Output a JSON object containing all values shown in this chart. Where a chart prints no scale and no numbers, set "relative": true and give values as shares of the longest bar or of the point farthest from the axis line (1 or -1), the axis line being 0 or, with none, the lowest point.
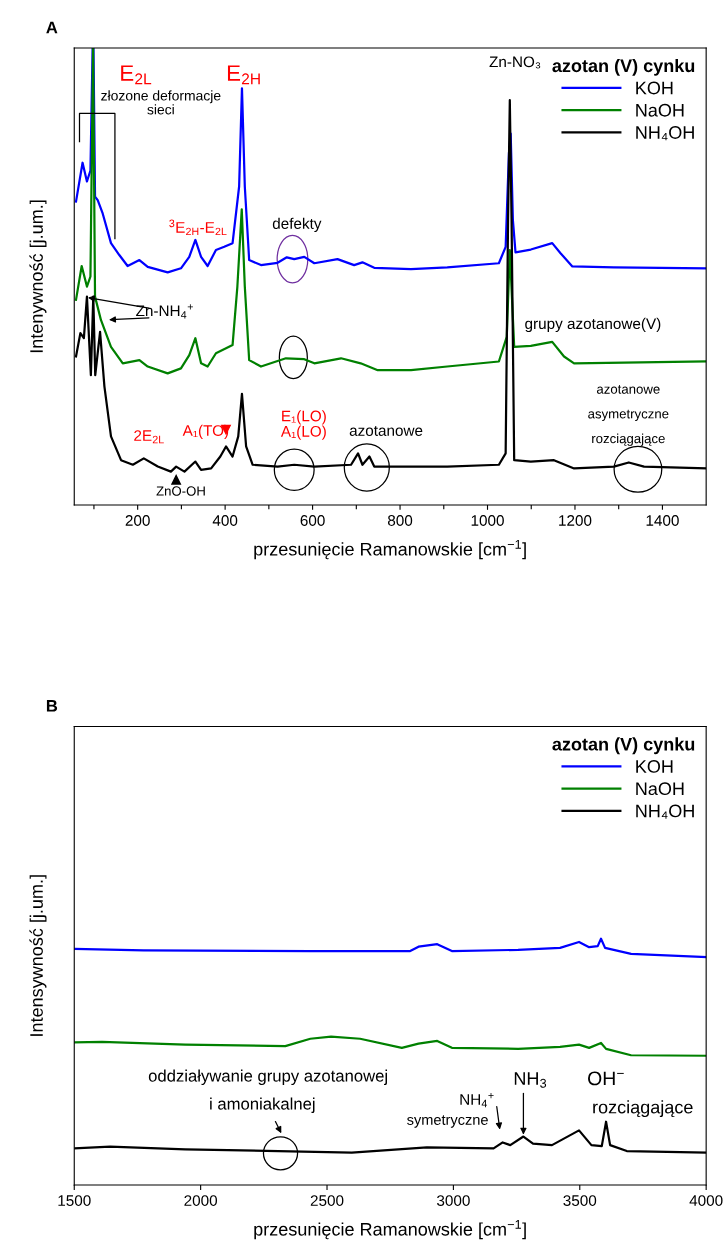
{
  "chart_data": [
    {
      "type": "line",
      "title": "A",
      "xlabel": "przesunięcie Ramanowskie [cm$^{−1}$]",
      "ylabel": "Intenywność [j.um.]",
      "relative": true,
      "legend": "top right",
      "legend_title": "azotan (V) cynku",
      "xlim": [
        55,
        1500
      ],
      "xticks": [
        {
          "value": 100,
          "label": null
        },
        200,
        {
          "value": 300,
          "label": null
        },
        400,
        {
          "value": 500,
          "label": null
        },
        600,
        {
          "value": 700,
          "label": null
        },
        800,
        {
          "value": 900,
          "label": null
        },
        1000,
        {
          "value": 1100,
          "label": null
        },
        1200,
        {
          "value": 1300,
          "label": null
        },
        1400
      ],
      "series": [
        {
          "name": "KOH",
          "color": "#0000ff",
          "x": [
            59,
            74,
            84,
            92,
            97,
            99,
            102.5,
            108.6,
            120,
            139,
            158,
            177,
            204,
            223,
            268.6,
            299,
            318,
            332,
            345,
            360,
            379,
            398,
            417,
            432,
            438.5,
            445,
            455,
            482,
            520,
            541,
            558,
            581,
            604,
            657,
            695,
            714,
            741,
            825,
            908,
            1026,
            1041.5,
            1049,
            1053,
            1058,
            1064,
            1099,
            1148,
            1167,
            1194,
            1289,
            1499
          ],
          "values": [
            0.664,
            0.749,
            0.708,
            0.732,
            1.0,
            1.0,
            0.675,
            0.667,
            0.638,
            0.573,
            0.547,
            0.523,
            0.536,
            0.521,
            0.509,
            0.518,
            0.543,
            0.58,
            0.543,
            0.523,
            0.558,
            0.565,
            0.573,
            0.697,
            0.912,
            0.697,
            0.536,
            0.525,
            0.53,
            0.542,
            0.538,
            0.543,
            0.529,
            0.538,
            0.525,
            0.531,
            0.519,
            0.516,
            0.52,
            0.529,
            0.565,
            0.77,
            0.813,
            0.624,
            0.553,
            0.559,
            0.573,
            0.551,
            0.522,
            0.52,
            0.518
          ]
        },
        {
          "name": "NaOH",
          "color": "#008000",
          "x": [
            59,
            72,
            84,
            92,
            98,
            102.5,
            116,
            139,
            166,
            204,
            223,
            268.6,
            299,
            318,
            332,
            345,
            360,
            379,
            417,
            428,
            438,
            445,
            455,
            482,
            539,
            581,
            604,
            665,
            710,
            749,
            825,
            908,
            1026,
            1044,
            1051,
            1061,
            1099,
            1148,
            1175,
            1198,
            1499
          ],
          "values": [
            0.449,
            0.523,
            0.478,
            0.5,
            1.0,
            0.456,
            0.405,
            0.346,
            0.31,
            0.317,
            0.303,
            0.288,
            0.299,
            0.328,
            0.365,
            0.31,
            0.303,
            0.332,
            0.35,
            0.478,
            0.647,
            0.478,
            0.317,
            0.303,
            0.321,
            0.319,
            0.31,
            0.321,
            0.31,
            0.295,
            0.295,
            0.303,
            0.314,
            0.368,
            0.558,
            0.346,
            0.348,
            0.357,
            0.325,
            0.31,
            0.314
          ]
        },
        {
          "name": "NH₄OH",
          "color": "#000000",
          "x": [
            59,
            69,
            77,
            84,
            93,
            98.5,
            103,
            114,
            124,
            139,
            162,
            189,
            214,
            246,
            276,
            288,
            307,
            332,
            345,
            368,
            389,
            402,
            417,
            430,
            438.5,
            448,
            463,
            520,
            558,
            604,
            688,
            704,
            714,
            730,
            741,
            825,
            908,
            1026,
            1041.5,
            1047,
            1051,
            1055,
            1061,
            1099,
            1152,
            1198,
            1289,
            1323,
            1358,
            1499
          ],
          "values": [
            0.325,
            0.376,
            0.365,
            0.456,
            0.284,
            0.456,
            0.284,
            0.379,
            0.259,
            0.15,
            0.098,
            0.088,
            0.102,
            0.084,
            0.073,
            0.084,
            0.073,
            0.095,
            0.077,
            0.08,
            0.106,
            0.128,
            0.106,
            0.15,
            0.243,
            0.128,
            0.088,
            0.084,
            0.088,
            0.084,
            0.088,
            0.113,
            0.088,
            0.106,
            0.084,
            0.084,
            0.084,
            0.088,
            0.113,
            0.624,
            0.886,
            0.624,
            0.098,
            0.095,
            0.098,
            0.08,
            0.084,
            0.093,
            0.084,
            0.08
          ]
        }
      ],
      "annotations": [
        "E$_{2L}$",
        "E$_{2H}$",
        "złozone deformacje\nsieci",
        "$^{3}$E$_{2H}$-E$_{2L}$",
        "defekty",
        "Zn-NH$_{4}$$^{+}$",
        "grupy azotanowe(V)",
        "azotanowe\nasymetryczne\nrozciągające",
        "Zn-NO₃",
        "2E$_{2L}$",
        "A₁(TO)",
        "E₁(LO)\nA₁(LO)",
        "azotanowe",
        "ZnO-OH"
      ]
    },
    {
      "type": "line",
      "title": "B",
      "xlabel": "przesunięcie Ramanowskie [cm$^{−1}$]",
      "ylabel": "Intensywność [j.um.]",
      "relative": true,
      "legend": "top right",
      "legend_title": "azotan (V) cynku",
      "xlim": [
        1500,
        4000
      ],
      "xticks": [
        1500,
        2000,
        2500,
        3000,
        3500,
        4000
      ],
      "series": [
        {
          "name": "KOH",
          "color": "#0000ff",
          "x": [
            1500,
            1774,
            2434,
            2829,
            2862,
            2936,
            2994,
            3256,
            3422,
            3497,
            3537,
            3571,
            3584,
            3600,
            3703,
            4000
          ],
          "values": [
            0.959,
            0.953,
            0.95,
            0.95,
            0.968,
            0.978,
            0.95,
            0.955,
            0.963,
            0.987,
            0.966,
            0.97,
            1.0,
            0.963,
            0.939,
            0.926
          ]
        },
        {
          "name": "NaOH",
          "color": "#008000",
          "x": [
            1500,
            1610,
            1939,
            2335,
            2434,
            2516,
            2631,
            2796,
            2862,
            2936,
            2994,
            3256,
            3422,
            3497,
            3537,
            3584,
            3604,
            3703,
            4000
          ],
          "values": [
            0.579,
            0.581,
            0.57,
            0.564,
            0.594,
            0.603,
            0.594,
            0.557,
            0.574,
            0.585,
            0.557,
            0.553,
            0.561,
            0.57,
            0.557,
            0.577,
            0.553,
            0.527,
            0.525
          ]
        },
        {
          "name": "NH₄OH",
          "color": "#000000",
          "x": [
            1500,
            1642,
            1939,
            2598,
            2895,
            3159,
            3195,
            3225,
            3277,
            3315,
            3390,
            3497,
            3546,
            3587,
            3604,
            3620,
            3686,
            4000
          ],
          "values": [
            0.149,
            0.156,
            0.145,
            0.132,
            0.153,
            0.149,
            0.173,
            0.162,
            0.197,
            0.168,
            0.162,
            0.222,
            0.162,
            0.158,
            0.257,
            0.162,
            0.138,
            0.132
          ]
        }
      ],
      "annotations": [
        "oddziaływanie grupy azotanowej",
        "i amoniakalnej",
        "NH$_{4}$$^{+}$",
        "symetryczne",
        "NH$_{3}$",
        "OH$^{−}$",
        "rozciągające"
      ]
    }
  ]
}
